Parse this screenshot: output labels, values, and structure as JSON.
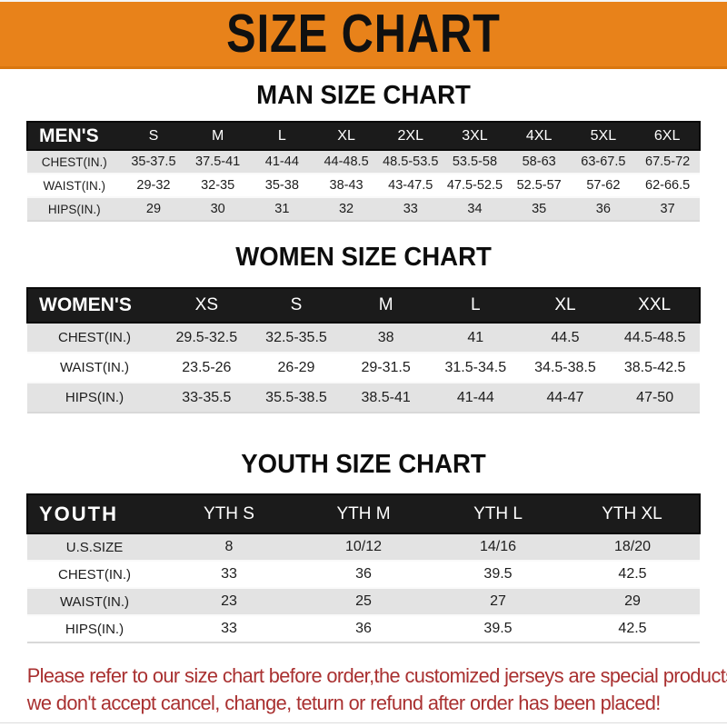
{
  "banner": {
    "title": "SIZE CHART"
  },
  "sections": [
    {
      "id": "men",
      "heading": "MAN SIZE CHART",
      "header_label": "MEN'S",
      "columns": [
        "S",
        "M",
        "L",
        "XL",
        "2XL",
        "3XL",
        "4XL",
        "5XL",
        "6XL"
      ],
      "rows": [
        {
          "label": "CHEST(IN.)",
          "values": [
            "35-37.5",
            "37.5-41",
            "41-44",
            "44-48.5",
            "48.5-53.5",
            "53.5-58",
            "58-63",
            "63-67.5",
            "67.5-72"
          ]
        },
        {
          "label": "WAIST(IN.)",
          "values": [
            "29-32",
            "32-35",
            "35-38",
            "38-43",
            "43-47.5",
            "47.5-52.5",
            "52.5-57",
            "57-62",
            "62-66.5"
          ]
        },
        {
          "label": "HIPS(IN.)",
          "values": [
            "29",
            "30",
            "31",
            "32",
            "33",
            "34",
            "35",
            "36",
            "37"
          ]
        }
      ]
    },
    {
      "id": "women",
      "heading": "WOMEN SIZE CHART",
      "header_label": "WOMEN'S",
      "columns": [
        "XS",
        "S",
        "M",
        "L",
        "XL",
        "XXL"
      ],
      "rows": [
        {
          "label": "CHEST(IN.)",
          "values": [
            "29.5-32.5",
            "32.5-35.5",
            "38",
            "41",
            "44.5",
            "44.5-48.5"
          ]
        },
        {
          "label": "WAIST(IN.)",
          "values": [
            "23.5-26",
            "26-29",
            "29-31.5",
            "31.5-34.5",
            "34.5-38.5",
            "38.5-42.5"
          ]
        },
        {
          "label": "HIPS(IN.)",
          "values": [
            "33-35.5",
            "35.5-38.5",
            "38.5-41",
            "41-44",
            "44-47",
            "47-50"
          ]
        }
      ]
    },
    {
      "id": "youth",
      "heading": "YOUTH SIZE CHART",
      "header_label": "YOUTH",
      "columns": [
        "YTH S",
        "YTH M",
        "YTH L",
        "YTH XL"
      ],
      "rows": [
        {
          "label": "U.S.SIZE",
          "values": [
            "8",
            "10/12",
            "14/16",
            "18/20"
          ]
        },
        {
          "label": "CHEST(IN.)",
          "values": [
            "33",
            "36",
            "39.5",
            "42.5"
          ]
        },
        {
          "label": "WAIST(IN.)",
          "values": [
            "23",
            "25",
            "27",
            "29"
          ]
        },
        {
          "label": "HIPS(IN.)",
          "values": [
            "33",
            "36",
            "39.5",
            "42.5"
          ]
        }
      ]
    }
  ],
  "footer": {
    "lines": [
      "Please refer to our size chart before order,the customized jerseys are special products,",
      "we don't accept cancel, change, teturn or refund after order has been placed!"
    ]
  },
  "colors": {
    "banner_orange": "#e8821a",
    "header_bar_black": "#1b1b1b",
    "stripe_gray": "#e3e3e3",
    "footer_red": "#a93030"
  }
}
